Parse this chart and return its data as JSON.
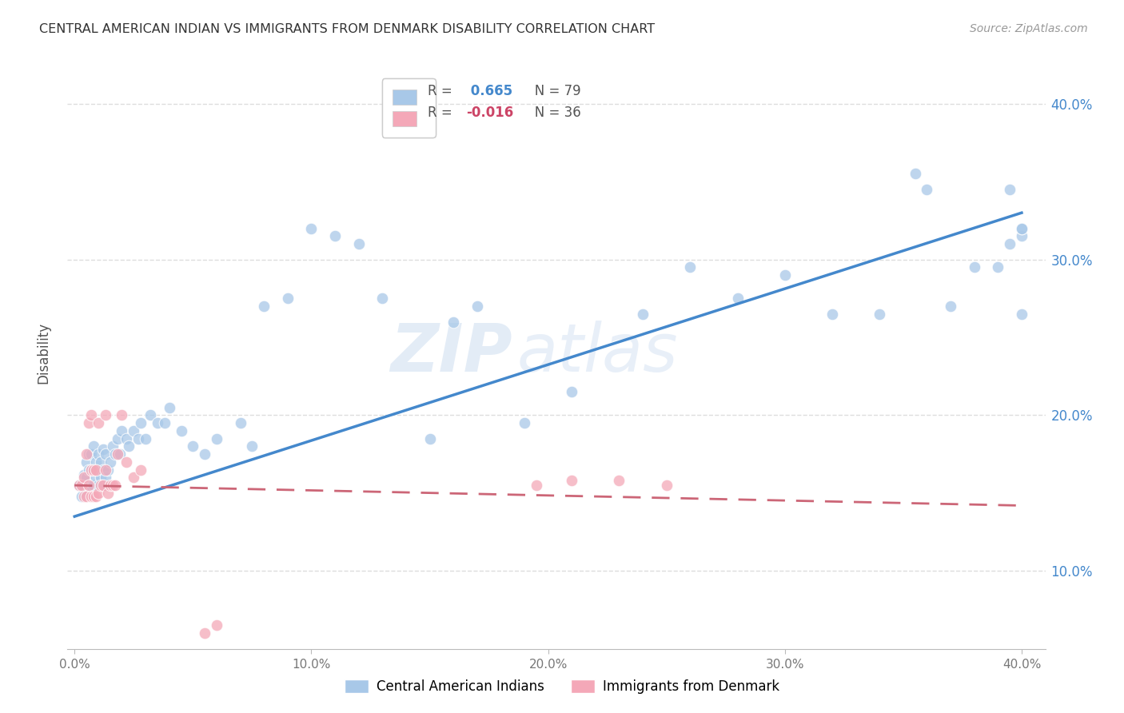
{
  "title": "CENTRAL AMERICAN INDIAN VS IMMIGRANTS FROM DENMARK DISABILITY CORRELATION CHART",
  "source": "Source: ZipAtlas.com",
  "ylabel": "Disability",
  "xlim": [
    -0.003,
    0.41
  ],
  "ylim": [
    0.05,
    0.43
  ],
  "xticks": [
    0.0,
    0.1,
    0.2,
    0.3,
    0.4
  ],
  "yticks": [
    0.1,
    0.2,
    0.3,
    0.4
  ],
  "ytick_labels_right": [
    "10.0%",
    "20.0%",
    "30.0%",
    "40.0%"
  ],
  "xtick_labels": [
    "0.0%",
    "10.0%",
    "20.0%",
    "30.0%",
    "40.0%"
  ],
  "blue_R": 0.665,
  "blue_N": 79,
  "pink_R": -0.016,
  "pink_N": 36,
  "blue_color": "#a8c8e8",
  "pink_color": "#f4a8b8",
  "blue_line_color": "#4488cc",
  "pink_line_color": "#cc6677",
  "watermark_zip": "ZIP",
  "watermark_atlas": "atlas",
  "legend_label_blue": "Central American Indians",
  "legend_label_pink": "Immigrants from Denmark",
  "blue_R_color": "#4488cc",
  "pink_R_color": "#cc4466",
  "background_color": "#ffffff",
  "grid_color": "#dddddd",
  "blue_x": [
    0.002,
    0.003,
    0.004,
    0.004,
    0.005,
    0.005,
    0.005,
    0.006,
    0.006,
    0.006,
    0.007,
    0.007,
    0.007,
    0.008,
    0.008,
    0.008,
    0.009,
    0.009,
    0.01,
    0.01,
    0.01,
    0.011,
    0.011,
    0.012,
    0.012,
    0.012,
    0.013,
    0.013,
    0.014,
    0.015,
    0.016,
    0.017,
    0.018,
    0.019,
    0.02,
    0.022,
    0.023,
    0.025,
    0.027,
    0.028,
    0.03,
    0.032,
    0.035,
    0.038,
    0.04,
    0.045,
    0.05,
    0.055,
    0.06,
    0.07,
    0.075,
    0.08,
    0.09,
    0.1,
    0.11,
    0.12,
    0.13,
    0.15,
    0.16,
    0.17,
    0.19,
    0.21,
    0.24,
    0.26,
    0.28,
    0.3,
    0.32,
    0.34,
    0.355,
    0.36,
    0.37,
    0.38,
    0.39,
    0.395,
    0.4,
    0.4,
    0.4,
    0.395,
    0.4
  ],
  "blue_y": [
    0.155,
    0.148,
    0.155,
    0.162,
    0.15,
    0.16,
    0.17,
    0.155,
    0.165,
    0.175,
    0.155,
    0.165,
    0.175,
    0.155,
    0.165,
    0.18,
    0.16,
    0.17,
    0.155,
    0.165,
    0.175,
    0.16,
    0.17,
    0.155,
    0.165,
    0.178,
    0.16,
    0.175,
    0.165,
    0.17,
    0.18,
    0.175,
    0.185,
    0.175,
    0.19,
    0.185,
    0.18,
    0.19,
    0.185,
    0.195,
    0.185,
    0.2,
    0.195,
    0.195,
    0.205,
    0.19,
    0.18,
    0.175,
    0.185,
    0.195,
    0.18,
    0.27,
    0.275,
    0.32,
    0.315,
    0.31,
    0.275,
    0.185,
    0.26,
    0.27,
    0.195,
    0.215,
    0.265,
    0.295,
    0.275,
    0.29,
    0.265,
    0.265,
    0.355,
    0.345,
    0.27,
    0.295,
    0.295,
    0.31,
    0.315,
    0.265,
    0.32,
    0.345,
    0.32
  ],
  "pink_x": [
    0.002,
    0.003,
    0.004,
    0.004,
    0.005,
    0.005,
    0.006,
    0.006,
    0.007,
    0.007,
    0.007,
    0.008,
    0.008,
    0.009,
    0.009,
    0.01,
    0.01,
    0.011,
    0.012,
    0.013,
    0.013,
    0.014,
    0.015,
    0.016,
    0.017,
    0.018,
    0.02,
    0.022,
    0.025,
    0.028,
    0.195,
    0.21,
    0.23,
    0.25,
    0.055,
    0.06
  ],
  "pink_y": [
    0.155,
    0.155,
    0.148,
    0.16,
    0.148,
    0.175,
    0.155,
    0.195,
    0.148,
    0.165,
    0.2,
    0.148,
    0.165,
    0.148,
    0.165,
    0.15,
    0.195,
    0.155,
    0.155,
    0.165,
    0.2,
    0.15,
    0.155,
    0.155,
    0.155,
    0.175,
    0.2,
    0.17,
    0.16,
    0.165,
    0.155,
    0.158,
    0.158,
    0.155,
    0.06,
    0.065
  ],
  "blue_line_x": [
    0.0,
    0.4
  ],
  "blue_line_y": [
    0.135,
    0.33
  ],
  "pink_line_x": [
    0.0,
    0.4
  ],
  "pink_line_y": [
    0.155,
    0.142
  ]
}
